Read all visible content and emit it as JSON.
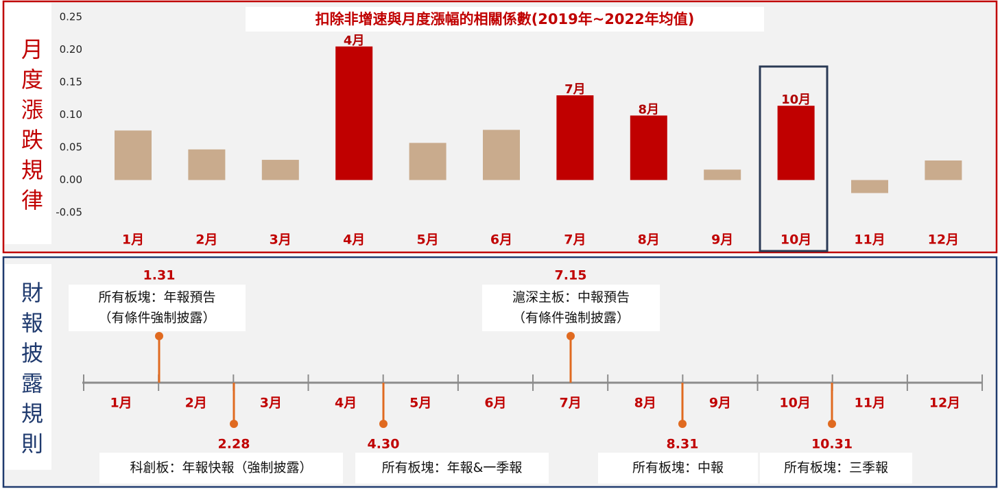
{
  "chart_data": {
    "type": "bar",
    "title": "扣除非增速與月度漲幅的相關係數(2019年~2022年均值)",
    "y_label": "月度漲跌規律",
    "categories": [
      "1月",
      "2月",
      "3月",
      "4月",
      "5月",
      "6月",
      "7月",
      "8月",
      "9月",
      "10月",
      "11月",
      "12月"
    ],
    "values": [
      0.076,
      0.047,
      0.031,
      0.205,
      0.057,
      0.077,
      0.13,
      0.099,
      0.016,
      0.114,
      -0.02,
      0.03
    ],
    "colors": [
      "#c9ab8d",
      "#c9ab8d",
      "#c9ab8d",
      "#c00000",
      "#c9ab8d",
      "#c9ab8d",
      "#c00000",
      "#c00000",
      "#c9ab8d",
      "#c00000",
      "#c9ab8d",
      "#c9ab8d"
    ],
    "bar_labels": [
      null,
      null,
      null,
      "4月",
      null,
      null,
      "7月",
      "8月",
      null,
      "10月",
      null,
      null
    ],
    "ylim": [
      -0.05,
      0.25
    ],
    "yticks": [
      0.25,
      {
        "value": 0.2,
        "label": "0.20"
      },
      0.15,
      {
        "value": 0.1,
        "label": "0.10"
      },
      0.05,
      {
        "value": 0,
        "label": "0.00"
      },
      -0.05
    ],
    "grid": false
  },
  "timeline": {
    "label": "財報披露規則",
    "months": [
      "1月",
      "2月",
      "3月",
      "4月",
      "5月",
      "6月",
      "7月",
      "8月",
      "9月",
      "10月",
      "11月",
      "12月"
    ],
    "events": [
      {
        "date": "1.31",
        "text": [
          "所有板塊：年報預告",
          "（有條件強制披露）"
        ]
      },
      {
        "date": "2.28",
        "text": [
          "科創板：年報快報（強制披露）"
        ]
      },
      {
        "date": "4.30",
        "text": [
          "所有板塊：年報&一季報"
        ]
      },
      {
        "date": "7.15",
        "text": [
          "滬深主板：中報預告",
          "（有條件強制披露）"
        ]
      },
      {
        "date": "8.31",
        "text": [
          "所有板塊：中報"
        ]
      },
      {
        "date": "10.31",
        "text": [
          "所有板塊：三季報"
        ]
      }
    ]
  }
}
